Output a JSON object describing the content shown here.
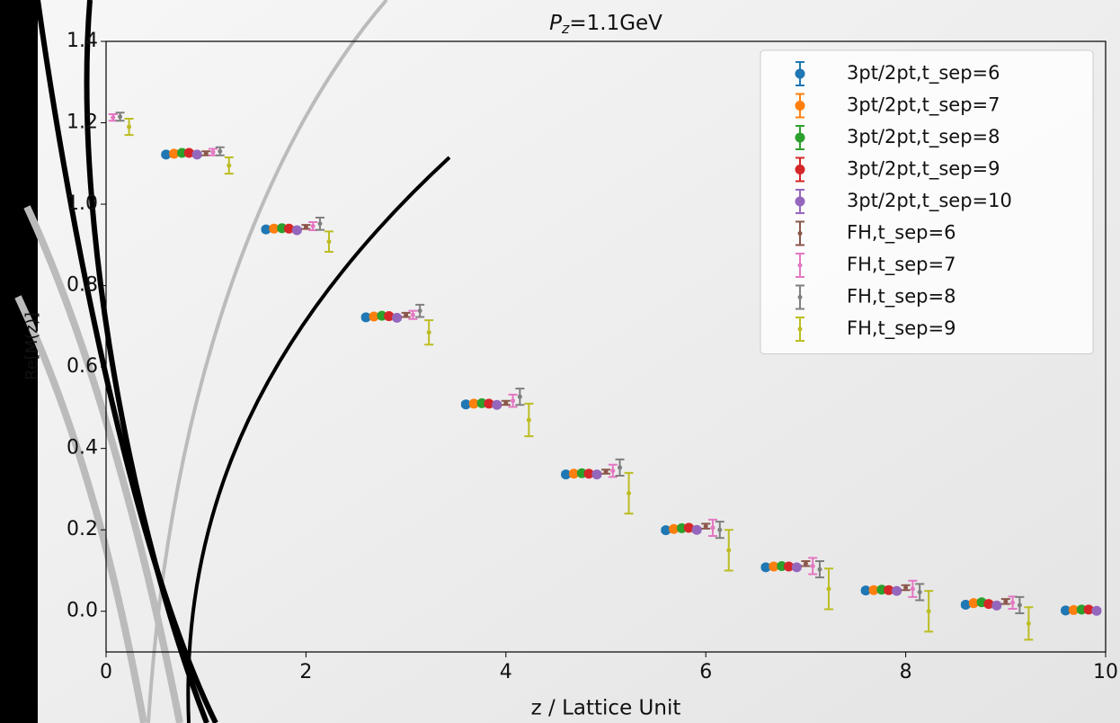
{
  "chart_data": {
    "type": "errorbar",
    "title": "P",
    "title_subscript": "z",
    "title_rest": "=1.1GeV",
    "xlabel": "z / Lattice Unit",
    "ylabel": "Re[M(z)]",
    "xlim": [
      0,
      10
    ],
    "ylim": [
      -0.1,
      1.4
    ],
    "xticks": [
      0,
      2,
      4,
      6,
      8,
      10
    ],
    "yticks": [
      {
        "value": 0,
        "label": "0.0"
      },
      {
        "value": 0.2,
        "label": "0.2"
      },
      {
        "value": 0.4,
        "label": "0.4"
      },
      {
        "value": 0.6,
        "label": "0.6"
      },
      {
        "value": 0.8,
        "label": "0.8"
      },
      {
        "value": 1,
        "label": "1.0"
      },
      {
        "value": 1.2,
        "label": "1.2"
      },
      {
        "value": 1.4,
        "label": "1.4"
      }
    ],
    "legend": "upper right",
    "series": [
      {
        "name": "3pt/2pt,t_sep=6",
        "color": "#1f77b4",
        "x": [
          0.6,
          1.6,
          2.6,
          3.6,
          4.6,
          5.6,
          6.6,
          7.6,
          8.6,
          9.6
        ],
        "values": [
          1.122,
          0.938,
          0.722,
          0.508,
          0.336,
          0.199,
          0.108,
          0.051,
          0.016,
          0.002
        ],
        "errors": [
          0.005,
          0.005,
          0.005,
          0.005,
          0.005,
          0.005,
          0.005,
          0.005,
          0.005,
          0.005
        ]
      },
      {
        "name": "3pt/2pt,t_sep=7",
        "color": "#ff7f0e",
        "x": [
          0.68,
          1.68,
          2.68,
          3.68,
          4.68,
          5.68,
          6.68,
          7.68,
          8.68,
          9.68
        ],
        "values": [
          1.124,
          0.94,
          0.724,
          0.51,
          0.338,
          0.202,
          0.11,
          0.052,
          0.02,
          0.003
        ],
        "errors": [
          0.005,
          0.005,
          0.005,
          0.005,
          0.005,
          0.005,
          0.005,
          0.005,
          0.005,
          0.005
        ]
      },
      {
        "name": "3pt/2pt,t_sep=8",
        "color": "#2ca02c",
        "x": [
          0.76,
          1.76,
          2.76,
          3.76,
          4.76,
          5.76,
          6.76,
          7.76,
          8.76,
          9.76
        ],
        "values": [
          1.126,
          0.941,
          0.726,
          0.511,
          0.339,
          0.204,
          0.111,
          0.053,
          0.022,
          0.004
        ],
        "errors": [
          0.005,
          0.005,
          0.005,
          0.005,
          0.005,
          0.005,
          0.005,
          0.005,
          0.005,
          0.005
        ]
      },
      {
        "name": "3pt/2pt,t_sep=9",
        "color": "#d62728",
        "x": [
          0.83,
          1.83,
          2.83,
          3.83,
          4.83,
          5.83,
          6.83,
          7.83,
          8.83,
          9.83
        ],
        "values": [
          1.126,
          0.94,
          0.725,
          0.51,
          0.338,
          0.205,
          0.11,
          0.052,
          0.018,
          0.004
        ],
        "errors": [
          0.005,
          0.005,
          0.005,
          0.005,
          0.005,
          0.005,
          0.005,
          0.005,
          0.005,
          0.005
        ]
      },
      {
        "name": "3pt/2pt,t_sep=10",
        "color": "#9467bd",
        "x": [
          0.91,
          1.91,
          2.91,
          3.91,
          4.91,
          5.91,
          6.91,
          7.91,
          8.91,
          9.91
        ],
        "values": [
          1.122,
          0.936,
          0.721,
          0.507,
          0.336,
          0.2,
          0.108,
          0.05,
          0.014,
          0.001
        ],
        "errors": [
          0.005,
          0.005,
          0.005,
          0.005,
          0.005,
          0.005,
          0.005,
          0.005,
          0.005,
          0.005
        ]
      },
      {
        "name": "FH,t_sep=6",
        "color": "#8c564b",
        "x": [
          1.0,
          2.0,
          3.0,
          4.0,
          5.0,
          6.0,
          7.0,
          8.0,
          9.0
        ],
        "values": [
          1.125,
          0.944,
          0.728,
          0.512,
          0.343,
          0.209,
          0.117,
          0.058,
          0.024
        ],
        "errors": [
          0.005,
          0.005,
          0.005,
          0.005,
          0.005,
          0.006,
          0.006,
          0.006,
          0.006
        ]
      },
      {
        "name": "FH,t_sep=7",
        "color": "#e377c2",
        "x": [
          0.07,
          1.07,
          2.07,
          3.07,
          4.07,
          5.07,
          6.07,
          7.07,
          8.07,
          9.07
        ],
        "values": [
          1.213,
          1.128,
          0.946,
          0.728,
          0.517,
          0.345,
          0.205,
          0.111,
          0.055,
          0.021
        ],
        "errors": [
          0.008,
          0.008,
          0.01,
          0.01,
          0.015,
          0.015,
          0.02,
          0.02,
          0.02,
          0.015
        ]
      },
      {
        "name": "FH,t_sep=8",
        "color": "#7f7f7f",
        "x": [
          0.14,
          1.14,
          2.14,
          3.14,
          4.14,
          5.14,
          6.14,
          7.14,
          8.14,
          9.14
        ],
        "values": [
          1.215,
          1.13,
          0.952,
          0.738,
          0.527,
          0.353,
          0.2,
          0.103,
          0.047,
          0.015
        ],
        "errors": [
          0.01,
          0.01,
          0.015,
          0.015,
          0.02,
          0.02,
          0.02,
          0.02,
          0.02,
          0.02
        ]
      },
      {
        "name": "FH,t_sep=9",
        "color": "#bcbd22",
        "x": [
          0.23,
          1.23,
          2.23,
          3.23,
          4.23,
          5.23,
          6.23,
          7.23,
          8.23,
          9.23
        ],
        "values": [
          1.19,
          1.095,
          0.908,
          0.685,
          0.47,
          0.29,
          0.15,
          0.055,
          0.0,
          -0.03
        ],
        "errors": [
          0.02,
          0.02,
          0.025,
          0.03,
          0.04,
          0.05,
          0.05,
          0.05,
          0.05,
          0.04
        ]
      }
    ]
  }
}
